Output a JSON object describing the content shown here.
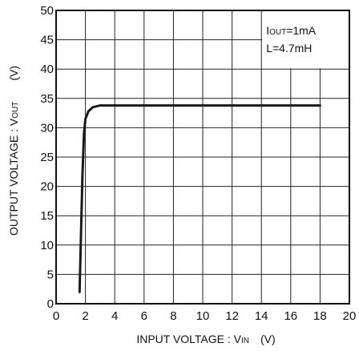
{
  "chart_data": {
    "type": "line",
    "title": "",
    "xlabel": {
      "main": "INPUT VOLTAGE : V",
      "sub": "IN",
      "unit": "(V)"
    },
    "ylabel": {
      "main": "OUTPUT VOLTAGE : V",
      "sub": "OUT",
      "unit": "(V)"
    },
    "xlim": [
      0,
      20
    ],
    "ylim": [
      0,
      50
    ],
    "x_ticks": [
      "0",
      "2",
      "4",
      "6",
      "8",
      "10",
      "12",
      "14",
      "16",
      "18",
      "20"
    ],
    "y_ticks": [
      "0",
      "5",
      "10",
      "15",
      "20",
      "25",
      "30",
      "35",
      "40",
      "45",
      "50"
    ],
    "grid": true,
    "legend": "none",
    "annotations": [
      {
        "label": "I",
        "sub": "OUT",
        "text": "=1mA"
      },
      {
        "label": "L",
        "sub": "",
        "text": "=4.7mH"
      }
    ],
    "series": [
      {
        "color": "#1a1a1a",
        "x": [
          1.6,
          1.7,
          1.8,
          1.9,
          2.0,
          2.2,
          2.5,
          3.0,
          4.0,
          18.0
        ],
        "y": [
          2.0,
          12.0,
          22.0,
          29.0,
          31.5,
          32.8,
          33.5,
          33.8,
          33.8,
          33.8
        ]
      }
    ]
  }
}
